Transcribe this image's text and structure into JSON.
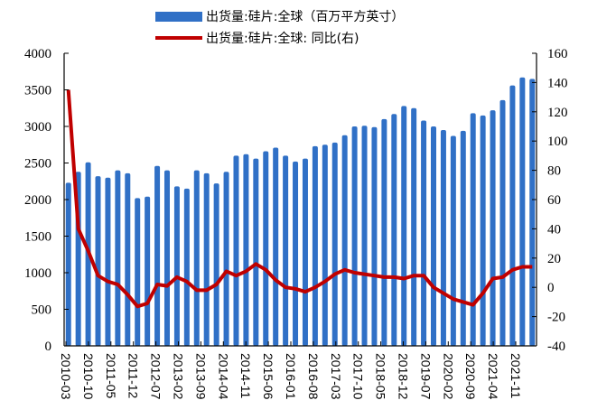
{
  "legend": {
    "bar_label": "出货量:硅片:全球（百万平方英寸）",
    "line_label": "出货量:硅片:全球: 同比(右)"
  },
  "colors": {
    "bar": "#3070c6",
    "line": "#c00000",
    "axis": "#000000"
  },
  "chart_data": {
    "type": "bar",
    "title": "",
    "xlabel": "",
    "ylabel": "",
    "ylim": [
      0,
      4000
    ],
    "y2lim": [
      -40,
      160
    ],
    "grid": false,
    "legend_position": "top",
    "left_ticks": [
      0,
      500,
      1000,
      1500,
      2000,
      2500,
      3000,
      3500,
      4000
    ],
    "right_ticks": [
      -40,
      -20,
      0,
      20,
      40,
      60,
      80,
      100,
      120,
      140,
      160
    ],
    "x_tick_labels": [
      "2010-03",
      "2010-10",
      "2011-05",
      "2011-12",
      "2012-07",
      "2013-02",
      "2013-09",
      "2014-04",
      "2014-11",
      "2015-06",
      "2016-01",
      "2016-08",
      "2017-03",
      "2017-10",
      "2018-05",
      "2018-12",
      "2019-07",
      "2020-02",
      "2020-09",
      "2021-04",
      "2021-11"
    ],
    "series": [
      {
        "name": "出货量:硅片:全球（百万平方英寸）",
        "type": "bar",
        "axis": "left",
        "values": [
          2230,
          2380,
          2510,
          2320,
          2300,
          2400,
          2360,
          2020,
          2040,
          2460,
          2400,
          2180,
          2150,
          2400,
          2360,
          2220,
          2380,
          2600,
          2620,
          2560,
          2660,
          2710,
          2600,
          2520,
          2560,
          2730,
          2750,
          2780,
          2880,
          3000,
          3010,
          2990,
          3100,
          3170,
          3280,
          3250,
          3080,
          3000,
          2950,
          2870,
          2940,
          3180,
          3150,
          3220,
          3360,
          3560,
          3670,
          3650
        ]
      },
      {
        "name": "出货量:硅片:全球: 同比(右)",
        "type": "line",
        "axis": "right",
        "values": [
          135,
          40,
          25,
          8,
          4,
          2,
          -5,
          -13,
          -11,
          2,
          1,
          7,
          4,
          -2,
          -2,
          2,
          11,
          8,
          11,
          16,
          12,
          5,
          0,
          -1,
          -3,
          0,
          4,
          9,
          12,
          10,
          9,
          8,
          7,
          7,
          6,
          8,
          8,
          0,
          -4,
          -8,
          -10,
          -12,
          -4,
          6,
          7,
          12,
          14,
          14
        ]
      }
    ]
  }
}
